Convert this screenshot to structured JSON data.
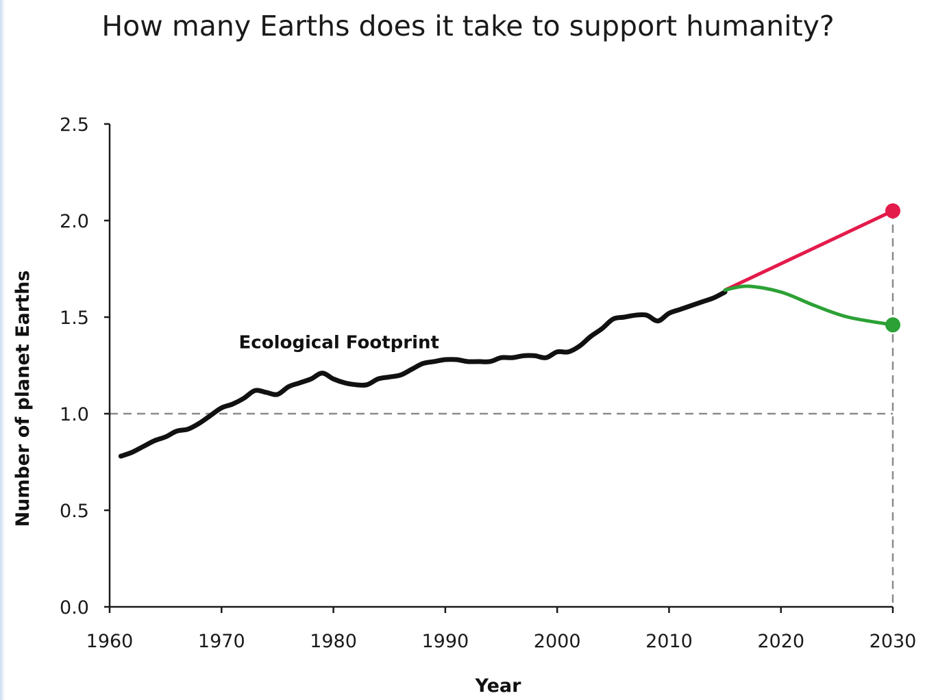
{
  "chart_data": {
    "type": "line",
    "title": "How many Earths does it take to support humanity?",
    "xlabel": "Year",
    "ylabel": "Number of planet Earths",
    "xlim": [
      1960,
      2030
    ],
    "ylim": [
      0,
      2.5
    ],
    "x_ticks": [
      "1960",
      "1970",
      "1980",
      "1990",
      "2000",
      "2010",
      "2020",
      "2030"
    ],
    "y_ticks": [
      "0.0",
      "0.5",
      "1.0",
      "1.5",
      "2.0",
      "2.5"
    ],
    "reference_line": {
      "y": 1.0,
      "style": "dashed"
    },
    "vertical_reference": {
      "x": 2030,
      "style": "dashed"
    },
    "series": [
      {
        "name": "Ecological Footprint",
        "color": "#111111",
        "x": [
          1961,
          1962,
          1963,
          1964,
          1965,
          1966,
          1967,
          1968,
          1969,
          1970,
          1971,
          1972,
          1973,
          1974,
          1975,
          1976,
          1977,
          1978,
          1979,
          1980,
          1981,
          1982,
          1983,
          1984,
          1985,
          1986,
          1987,
          1988,
          1989,
          1990,
          1991,
          1992,
          1993,
          1994,
          1995,
          1996,
          1997,
          1998,
          1999,
          2000,
          2001,
          2002,
          2003,
          2004,
          2005,
          2006,
          2007,
          2008,
          2009,
          2010,
          2011,
          2012,
          2013,
          2014,
          2015
        ],
        "values": [
          0.78,
          0.8,
          0.83,
          0.86,
          0.88,
          0.91,
          0.92,
          0.95,
          0.99,
          1.03,
          1.05,
          1.08,
          1.12,
          1.11,
          1.1,
          1.14,
          1.16,
          1.18,
          1.21,
          1.18,
          1.16,
          1.15,
          1.15,
          1.18,
          1.19,
          1.2,
          1.23,
          1.26,
          1.27,
          1.28,
          1.28,
          1.27,
          1.27,
          1.27,
          1.29,
          1.29,
          1.3,
          1.3,
          1.29,
          1.32,
          1.32,
          1.35,
          1.4,
          1.44,
          1.49,
          1.5,
          1.51,
          1.51,
          1.48,
          1.52,
          1.54,
          1.56,
          1.58,
          1.6,
          1.63
        ]
      },
      {
        "color": "#e31b4b",
        "x": [
          2015,
          2030
        ],
        "values": [
          1.64,
          2.05
        ]
      },
      {
        "color": "#2ca135",
        "x": [
          2015,
          2017,
          2020,
          2023,
          2026,
          2030
        ],
        "values": [
          1.64,
          1.66,
          1.63,
          1.56,
          1.5,
          1.46
        ]
      }
    ],
    "annotation": {
      "text": "Ecological Footprint",
      "x": 1980.5,
      "y": 1.37
    },
    "grid": false
  }
}
